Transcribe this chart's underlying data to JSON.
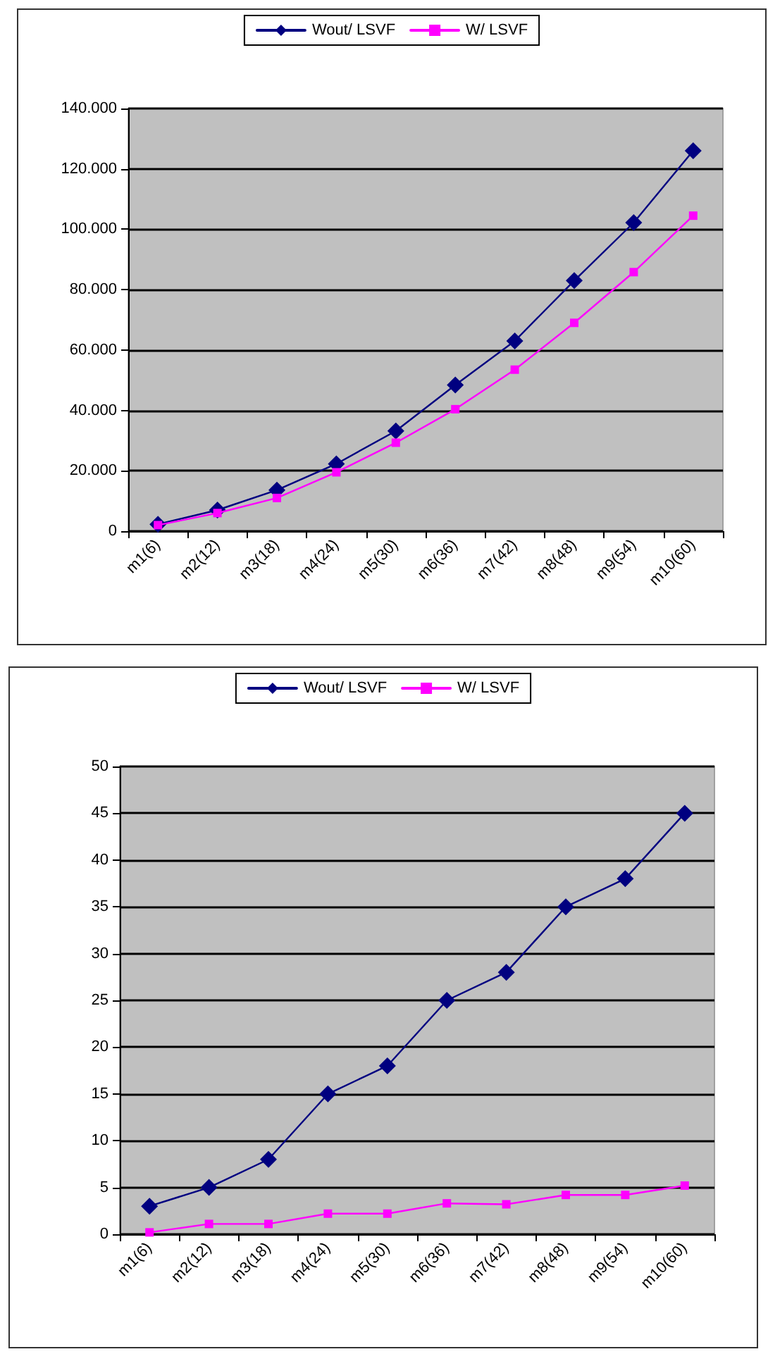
{
  "chart_data": [
    {
      "type": "line",
      "categories": [
        "m1(6)",
        "m2(12)",
        "m3(18)",
        "m4(24)",
        "m5(30)",
        "m6(36)",
        "m7(42)",
        "m8(48)",
        "m9(54)",
        "m10(60)"
      ],
      "series": [
        {
          "name": "Wout/ LSVF",
          "color": "#000080",
          "marker": "diamond",
          "values": [
            2300,
            7000,
            13600,
            22300,
            33200,
            48400,
            63000,
            83000,
            102200,
            126000
          ]
        },
        {
          "name": "W/ LSVF",
          "color": "#ff00ff",
          "marker": "square",
          "values": [
            2000,
            6000,
            11000,
            19500,
            29300,
            40400,
            53500,
            69000,
            85800,
            104500
          ]
        }
      ],
      "ylim": [
        0,
        140000
      ],
      "yticks": [
        {
          "value": 0,
          "label": "0"
        },
        {
          "value": 20000,
          "label": "20.000"
        },
        {
          "value": 40000,
          "label": "40.000"
        },
        {
          "value": 60000,
          "label": "60.000"
        },
        {
          "value": 80000,
          "label": "80.000"
        },
        {
          "value": 100000,
          "label": "100.000"
        },
        {
          "value": 120000,
          "label": "120.000"
        },
        {
          "value": 140000,
          "label": "140.000"
        }
      ],
      "grid": "y",
      "legend": "top"
    },
    {
      "type": "line",
      "categories": [
        "m1(6)",
        "m2(12)",
        "m3(18)",
        "m4(24)",
        "m5(30)",
        "m6(36)",
        "m7(42)",
        "m8(48)",
        "m9(54)",
        "m10(60)"
      ],
      "series": [
        {
          "name": "Wout/ LSVF",
          "color": "#000080",
          "marker": "diamond",
          "values": [
            3,
            5,
            8,
            15,
            18,
            25,
            28,
            35,
            38,
            45
          ]
        },
        {
          "name": "W/ LSVF",
          "color": "#ff00ff",
          "marker": "square",
          "values": [
            0.2,
            1.1,
            1.1,
            2.2,
            2.2,
            3.3,
            3.2,
            4.2,
            4.2,
            5.2
          ]
        }
      ],
      "ylim": [
        0,
        50
      ],
      "yticks": [
        0,
        5,
        10,
        15,
        20,
        25,
        30,
        35,
        40,
        45,
        50
      ],
      "grid": "y",
      "legend": "top"
    }
  ]
}
